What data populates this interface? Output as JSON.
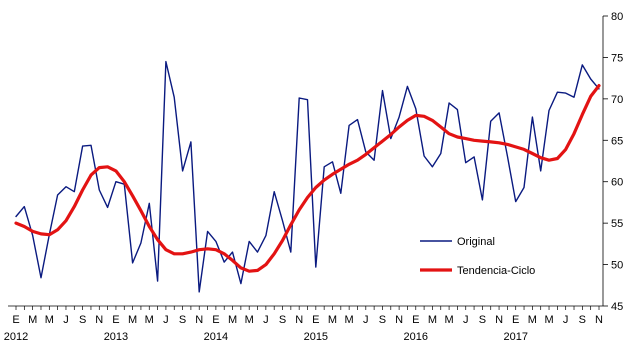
{
  "chart_data": {
    "type": "line",
    "title": "",
    "xlabel": "",
    "ylabel": "",
    "ylim": [
      45,
      80
    ],
    "yticks": [
      45,
      50,
      55,
      60,
      65,
      70,
      75,
      80
    ],
    "y_axis_position": "right",
    "grid": false,
    "legend_position": "bottom-right",
    "month_labels": [
      "E",
      "M",
      "M",
      "J",
      "S",
      "N"
    ],
    "years": [
      "2012",
      "2013",
      "2014",
      "2015",
      "2016",
      "2017"
    ],
    "x_start": "2012-01",
    "series": [
      {
        "name": "Original",
        "color": "#0a1a80",
        "values": [
          55.8,
          57.0,
          53.5,
          48.4,
          53.6,
          58.4,
          59.4,
          58.8,
          64.3,
          64.4,
          59.0,
          56.9,
          60.0,
          59.7,
          50.2,
          52.6,
          57.4,
          48.0,
          74.5,
          70.2,
          61.3,
          64.8,
          46.7,
          54.0,
          52.8,
          50.3,
          51.5,
          47.7,
          52.8,
          51.5,
          53.5,
          58.8,
          55.3,
          51.5,
          70.1,
          69.9,
          49.7,
          61.8,
          62.4,
          58.6,
          66.8,
          67.5,
          63.6,
          62.6,
          71.0,
          65.2,
          67.8,
          71.5,
          68.8,
          63.1,
          61.8,
          63.4,
          69.5,
          68.7,
          62.3,
          63.0,
          57.8,
          67.3,
          68.3,
          63.1,
          57.6,
          59.3,
          67.8,
          61.3,
          68.6,
          70.8,
          70.7,
          70.2,
          74.1,
          72.4,
          71.2
        ]
      },
      {
        "name": "Tendencia-Ciclo",
        "color": "#e31313",
        "values": [
          55.0,
          54.6,
          54.0,
          53.7,
          53.6,
          54.2,
          55.3,
          57.0,
          59.0,
          60.8,
          61.7,
          61.8,
          61.3,
          60.0,
          58.3,
          56.5,
          54.6,
          53.0,
          51.8,
          51.3,
          51.3,
          51.5,
          51.8,
          51.9,
          51.8,
          51.3,
          50.5,
          49.6,
          49.2,
          49.3,
          50.0,
          51.3,
          52.9,
          54.8,
          56.6,
          58.1,
          59.3,
          60.2,
          60.9,
          61.5,
          62.1,
          62.6,
          63.3,
          64.1,
          64.9,
          65.7,
          66.6,
          67.4,
          68.0,
          67.9,
          67.4,
          66.6,
          65.8,
          65.4,
          65.2,
          65.0,
          64.9,
          64.8,
          64.7,
          64.5,
          64.2,
          63.9,
          63.4,
          62.9,
          62.6,
          62.8,
          63.9,
          65.8,
          68.1,
          70.3,
          71.6
        ]
      }
    ]
  }
}
